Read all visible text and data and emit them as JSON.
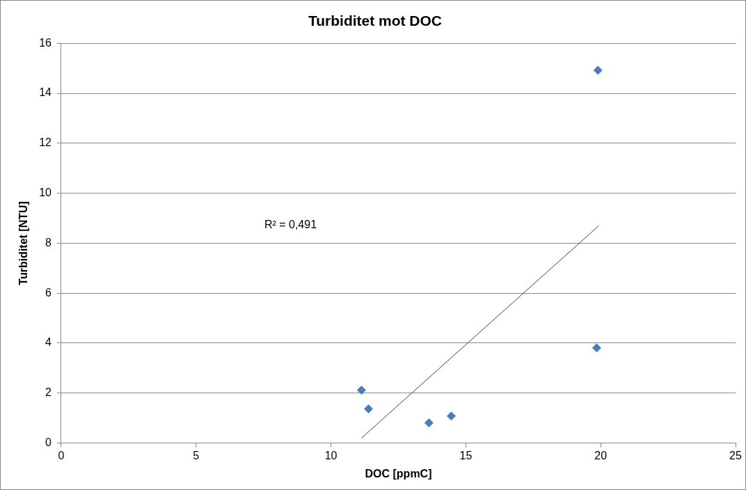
{
  "chart_data": {
    "type": "scatter",
    "title": "Turbiditet mot DOC",
    "xlabel": "DOC [ppmC]",
    "ylabel": "Turbiditet [NTU]",
    "xlim": [
      0,
      25
    ],
    "xticks": [
      0,
      5,
      10,
      15,
      20,
      25
    ],
    "ylim": [
      0,
      16
    ],
    "yticks": [
      0,
      2,
      4,
      6,
      8,
      10,
      12,
      14,
      16
    ],
    "grid": "y",
    "legend": false,
    "marker": "diamond",
    "series": [
      {
        "color": "#4a7ebb",
        "x": [
          11.13,
          11.39,
          13.63,
          14.46,
          19.85,
          19.9
        ],
        "values": [
          2.12,
          1.37,
          0.81,
          1.08,
          3.81,
          14.92
        ]
      },
      {
        "type": "line",
        "marker": "none",
        "color": "#404040",
        "x": [
          11.13,
          19.93
        ],
        "values": [
          0.2,
          8.7
        ]
      }
    ],
    "annotations": [
      "R² = 0,491"
    ]
  }
}
